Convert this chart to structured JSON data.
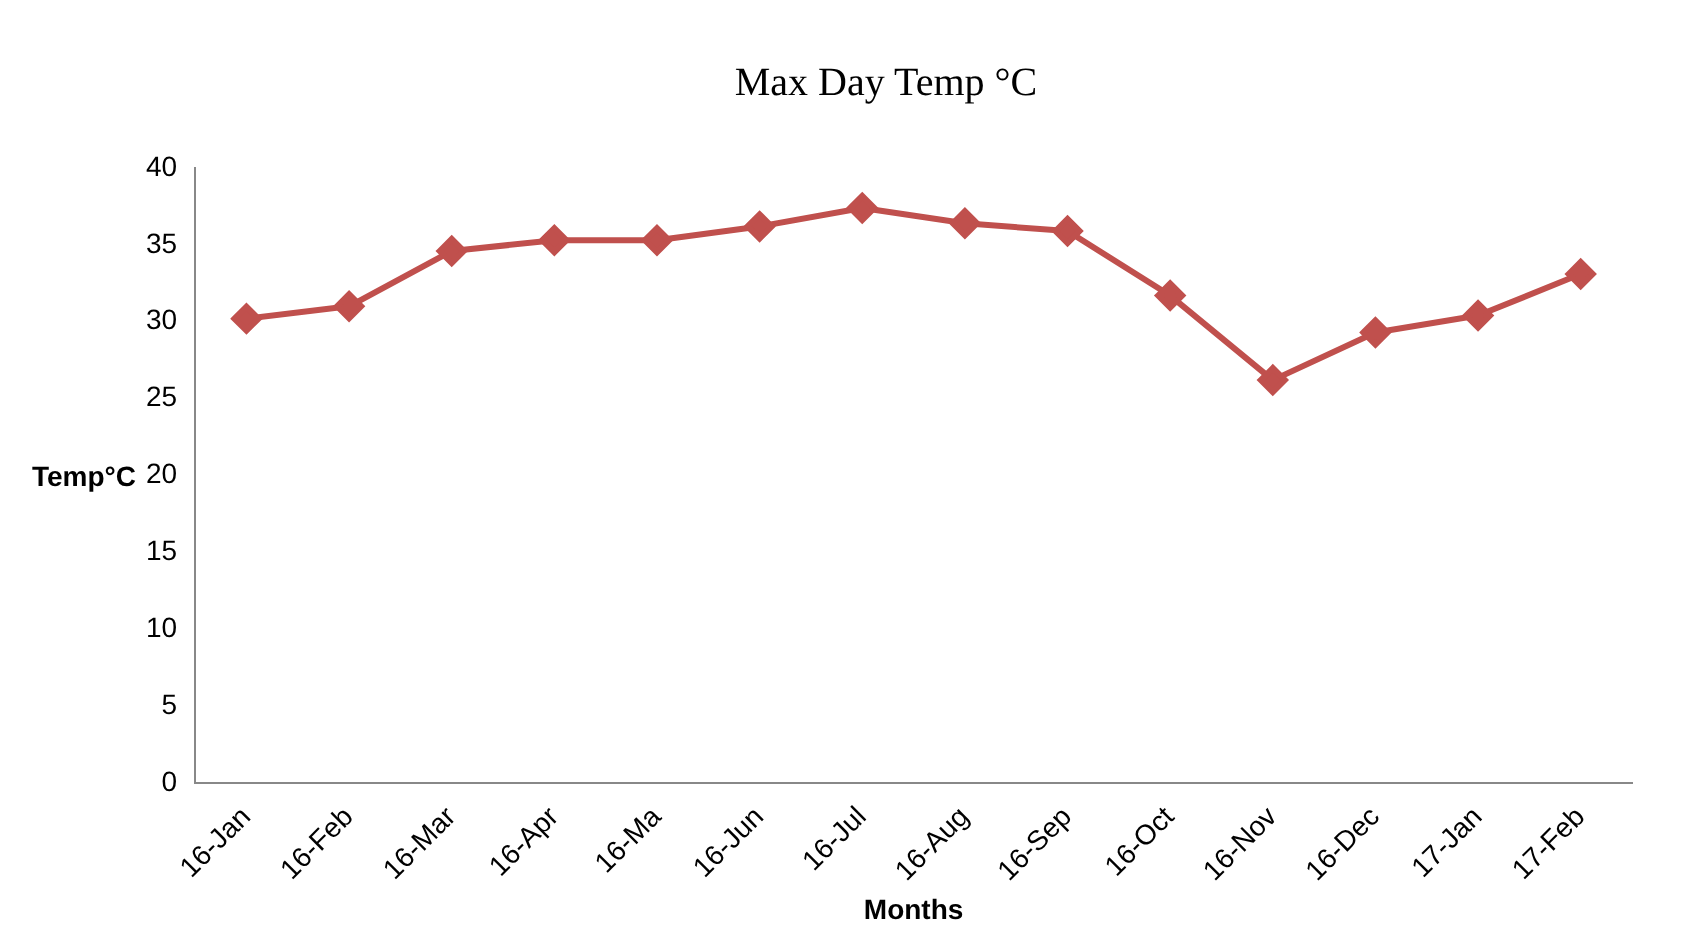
{
  "chart_data": {
    "type": "line",
    "title": "Max Day Temp °C",
    "xlabel": "Months",
    "ylabel": "Temp°C",
    "categories": [
      "16-Jan",
      "16-Feb",
      "16-Mar",
      "16-Apr",
      "16-Ma",
      "16-Jun",
      "16-Jul",
      "16-Aug",
      "16-Sep",
      "16-Oct",
      "16-Nov",
      "16-Dec",
      "17-Jan",
      "17-Feb"
    ],
    "series": [
      {
        "color": "#c0504d",
        "values": [
          30.2,
          31.0,
          34.6,
          35.3,
          35.3,
          36.2,
          37.4,
          36.4,
          35.9,
          31.7,
          26.2,
          29.3,
          30.4,
          33.1
        ]
      }
    ],
    "ylim": [
      0,
      40
    ],
    "yticks": [
      0,
      5,
      10,
      15,
      20,
      25,
      30,
      35,
      40
    ],
    "grid": false,
    "legend": false,
    "marker": "diamond",
    "line_style": "solid"
  }
}
